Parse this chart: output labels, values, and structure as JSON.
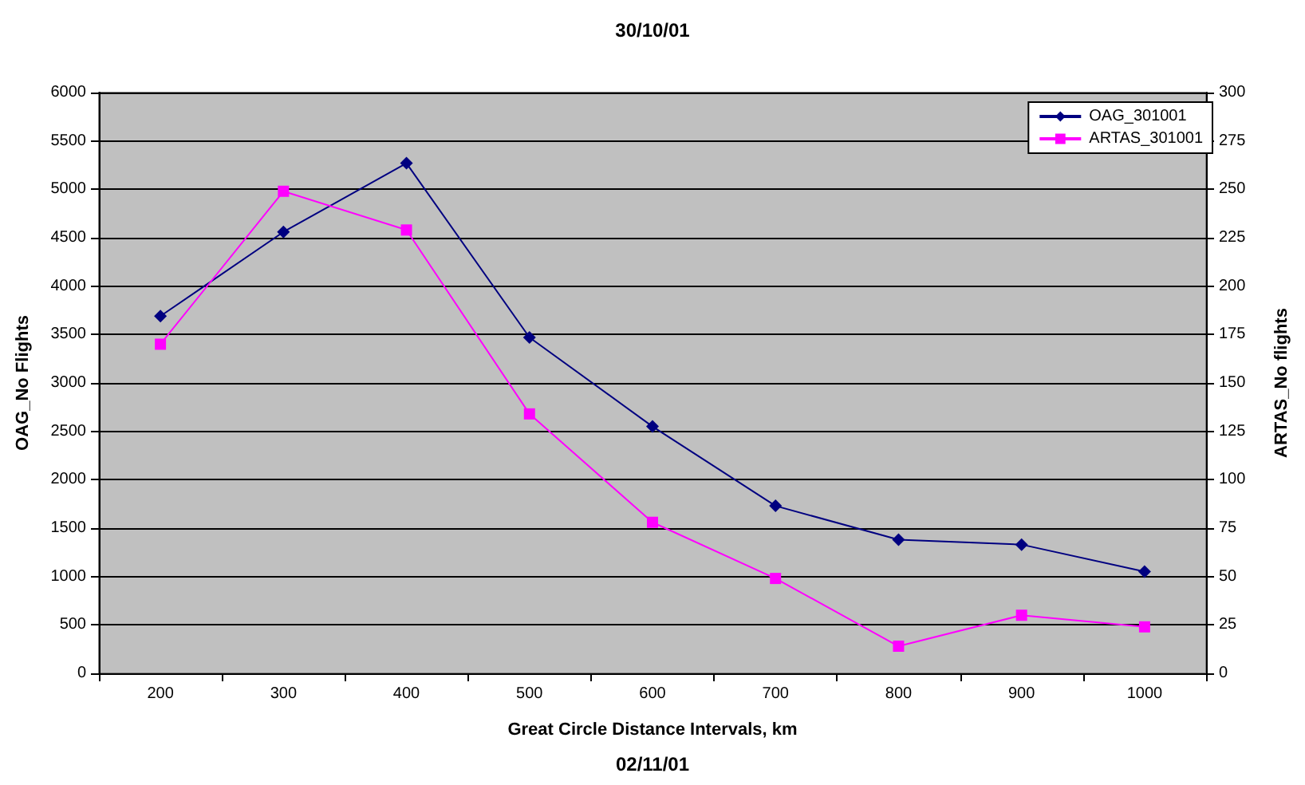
{
  "chart_data": {
    "type": "line",
    "title": "30/10/01",
    "xlabel": "Great Circle Distance Intervals, km",
    "ylabel": "OAG_No Flights",
    "y2label": "ARTAS_No flights",
    "annotations": [
      "02/11/01"
    ],
    "categories": [
      "200",
      "300",
      "400",
      "500",
      "600",
      "700",
      "800",
      "900",
      "1000"
    ],
    "series": [
      {
        "name": "OAG_301001",
        "color": "#000080",
        "marker": "diamond",
        "values": [
          3690,
          4560,
          5270,
          3470,
          2550,
          1730,
          1380,
          1330,
          1050
        ]
      },
      {
        "name": "ARTAS_301001",
        "color": "#ff00ff",
        "marker": "square",
        "axis": "y2",
        "values": [
          170,
          249,
          229,
          134,
          78,
          49,
          14,
          30,
          24
        ]
      }
    ],
    "ylim": [
      0,
      6000
    ],
    "yticks": [
      0,
      500,
      1000,
      1500,
      2000,
      2500,
      3000,
      3500,
      4000,
      4500,
      5000,
      5500,
      6000
    ],
    "y2lim": [
      0,
      300
    ],
    "y2ticks": [
      0,
      25,
      50,
      75,
      100,
      125,
      150,
      175,
      200,
      225,
      250,
      275,
      300
    ],
    "grid": "y",
    "legend": "top right",
    "line_style": "solid"
  }
}
